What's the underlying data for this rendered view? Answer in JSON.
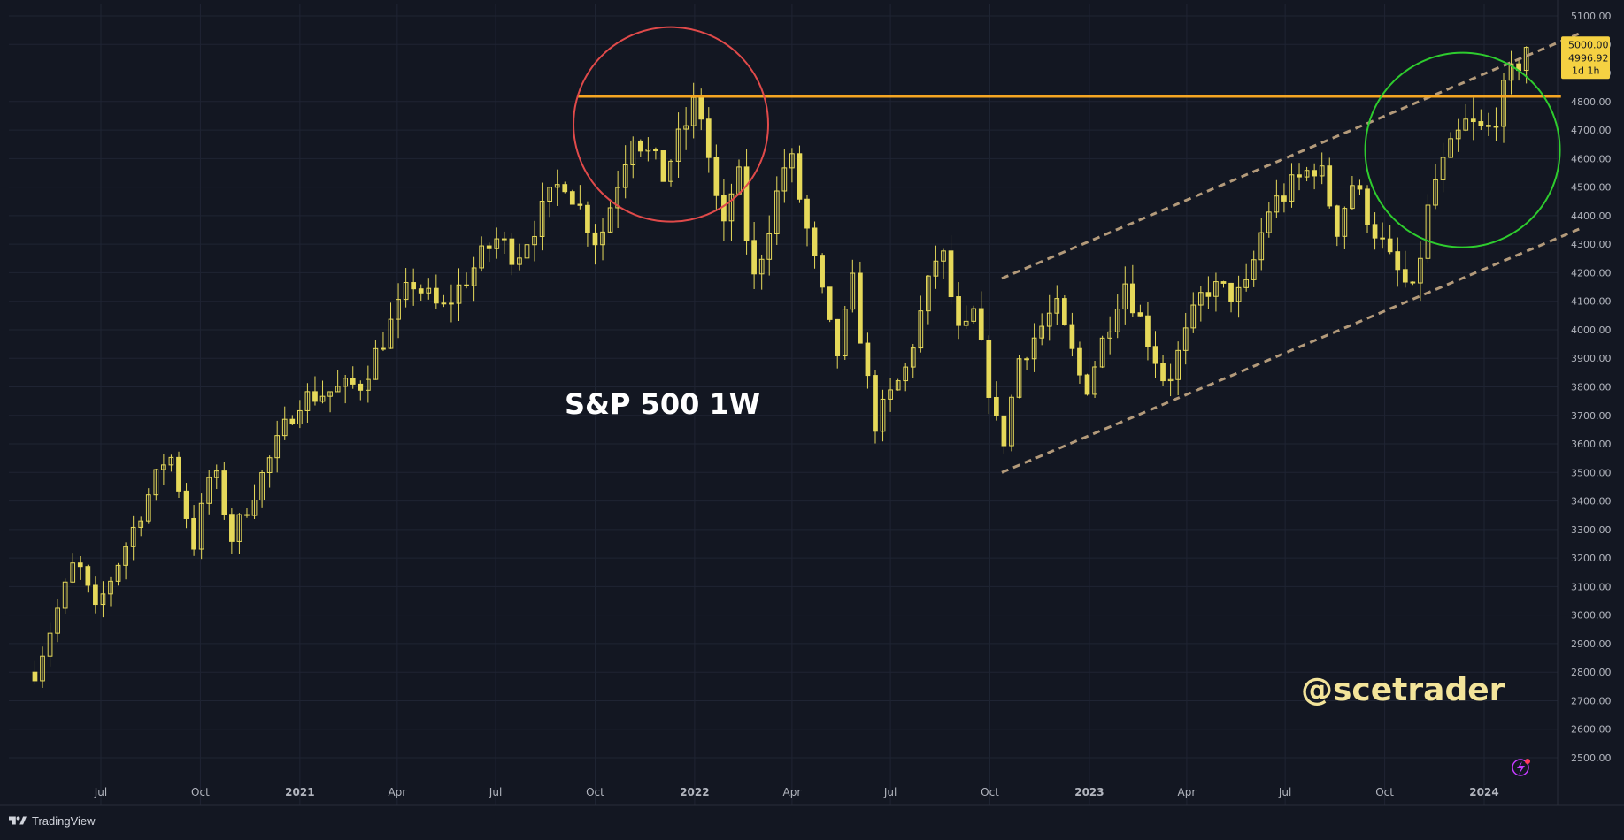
{
  "app": {
    "brand": "TradingView"
  },
  "chart_data": {
    "type": "candlestick",
    "title": "S&P 500 1W",
    "watermark": "@scetrader",
    "ylim": [
      2450,
      5150
    ],
    "y_ticks": [
      "2500.00",
      "2600.00",
      "2700.00",
      "2800.00",
      "2900.00",
      "3000.00",
      "3100.00",
      "3200.00",
      "3300.00",
      "3400.00",
      "3500.00",
      "3600.00",
      "3700.00",
      "3800.00",
      "3900.00",
      "4000.00",
      "4100.00",
      "4200.00",
      "4300.00",
      "4400.00",
      "4500.00",
      "4600.00",
      "4700.00",
      "4800.00",
      "4900.00",
      "5000.00",
      "5100.00"
    ],
    "x_ticks": [
      "Jul",
      "Oct",
      "2021",
      "Apr",
      "Jul",
      "Oct",
      "2022",
      "Apr",
      "Jul",
      "Oct",
      "2023",
      "Apr",
      "Jul",
      "Oct",
      "2024"
    ],
    "price_badge": {
      "level": "5000.00",
      "last": "4996.92",
      "countdown": "1d 1h"
    },
    "colors": {
      "candle": "#e6d95a",
      "background": "#131722",
      "resistance": "#f5a623",
      "channel": "#b39a7a",
      "circle_top": "#e04a4a",
      "circle_current": "#2ecc2e",
      "badge": "#f5d142"
    },
    "resistance_level": 4818,
    "anchors": [
      [
        "2020-05-01",
        2800
      ],
      [
        "2020-06-08",
        3200
      ],
      [
        "2020-06-26",
        3010
      ],
      [
        "2020-09-02",
        3580
      ],
      [
        "2020-09-25",
        3250
      ],
      [
        "2020-10-12",
        3530
      ],
      [
        "2020-10-30",
        3270
      ],
      [
        "2020-12-31",
        3756
      ],
      [
        "2021-02-26",
        3811
      ],
      [
        "2021-04-15",
        4170
      ],
      [
        "2021-05-12",
        4063
      ],
      [
        "2021-07-01",
        4320
      ],
      [
        "2021-07-20",
        4260
      ],
      [
        "2021-09-02",
        4537
      ],
      [
        "2021-10-04",
        4300
      ],
      [
        "2021-11-05",
        4700
      ],
      [
        "2021-12-03",
        4538
      ],
      [
        "2022-01-04",
        4818
      ],
      [
        "2022-01-27",
        4326
      ],
      [
        "2022-02-09",
        4580
      ],
      [
        "2022-02-24",
        4160
      ],
      [
        "2022-03-29",
        4630
      ],
      [
        "2022-05-12",
        3900
      ],
      [
        "2022-05-27",
        4158
      ],
      [
        "2022-06-16",
        3667
      ],
      [
        "2022-07-15",
        3860
      ],
      [
        "2022-08-16",
        4305
      ],
      [
        "2022-09-06",
        3908
      ],
      [
        "2022-09-13",
        4110
      ],
      [
        "2022-10-12",
        3577
      ],
      [
        "2022-10-28",
        3900
      ],
      [
        "2022-12-01",
        4080
      ],
      [
        "2022-12-28",
        3783
      ],
      [
        "2023-02-02",
        4179
      ],
      [
        "2023-03-13",
        3808
      ],
      [
        "2023-04-18",
        4150
      ],
      [
        "2023-05-24",
        4115
      ],
      [
        "2023-06-15",
        4420
      ],
      [
        "2023-07-31",
        4588
      ],
      [
        "2023-08-18",
        4360
      ],
      [
        "2023-09-01",
        4515
      ],
      [
        "2023-10-06",
        4240
      ],
      [
        "2023-10-27",
        4120
      ],
      [
        "2023-11-14",
        4500
      ],
      [
        "2023-12-14",
        4720
      ],
      [
        "2024-01-04",
        4690
      ],
      [
        "2024-01-24",
        4870
      ],
      [
        "2024-02-09",
        4997
      ]
    ],
    "annotations": {
      "channel_upper": [
        [
          "2022-10-12",
          4180
        ],
        [
          "2024-03-30",
          5040
        ]
      ],
      "channel_lower": [
        [
          "2022-10-12",
          3500
        ],
        [
          "2024-03-30",
          4355
        ]
      ],
      "resistance": [
        [
          "2021-09-15",
          4818
        ],
        [
          "2024-03-12",
          4818
        ]
      ],
      "circle_top": {
        "center": [
          "2021-12-10",
          4720
        ],
        "radius_days": 60
      },
      "circle_current": {
        "center": [
          "2023-12-12",
          4630
        ],
        "radius_days": 60
      }
    }
  }
}
